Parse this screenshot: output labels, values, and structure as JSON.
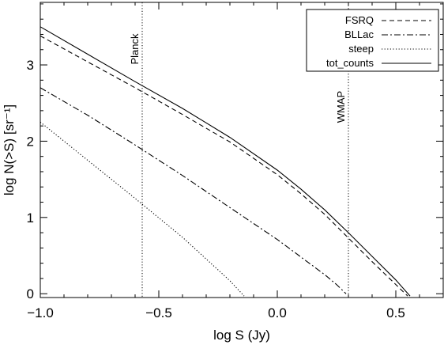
{
  "chart_data": {
    "type": "line",
    "xlabel": "log S (Jy)",
    "ylabel": "log N(>S) [sr⁻¹]",
    "xlim": [
      -1.0,
      0.7
    ],
    "ylim": [
      -0.05,
      3.82
    ],
    "xticks": [
      -1.0,
      -0.5,
      0.0,
      0.5
    ],
    "xtick_labels": [
      "−1.0",
      "−0.5",
      "0.0",
      "0.5"
    ],
    "yticks": [
      0,
      1,
      2,
      3
    ],
    "ytick_labels": [
      "0",
      "1",
      "2",
      "3"
    ],
    "grid": false,
    "legend_position": "top-right",
    "series": [
      {
        "name": "FSRQ",
        "style": "dashed",
        "x": [
          -1.0,
          -0.8,
          -0.6,
          -0.4,
          -0.2,
          0.0,
          0.1,
          0.2,
          0.3,
          0.4,
          0.5,
          0.55
        ],
        "y": [
          3.38,
          3.04,
          2.7,
          2.35,
          1.99,
          1.56,
          1.31,
          1.04,
          0.73,
          0.42,
          0.12,
          -0.03
        ]
      },
      {
        "name": "BLLac",
        "style": "dashdot",
        "x": [
          -1.0,
          -0.8,
          -0.6,
          -0.4,
          -0.2,
          0.0,
          0.2,
          0.25,
          0.29
        ],
        "y": [
          2.7,
          2.34,
          1.95,
          1.55,
          1.13,
          0.71,
          0.25,
          0.12,
          0.0
        ]
      },
      {
        "name": "steep",
        "style": "dotted",
        "x": [
          -1.0,
          -0.8,
          -0.6,
          -0.4,
          -0.2,
          -0.14
        ],
        "y": [
          2.25,
          1.75,
          1.25,
          0.74,
          0.17,
          -0.03
        ]
      },
      {
        "name": "tot_counts",
        "style": "solid",
        "x": [
          -1.0,
          -0.8,
          -0.6,
          -0.4,
          -0.2,
          0.0,
          0.1,
          0.2,
          0.3,
          0.4,
          0.5,
          0.56
        ],
        "y": [
          3.5,
          3.14,
          2.78,
          2.43,
          2.05,
          1.62,
          1.37,
          1.1,
          0.8,
          0.49,
          0.18,
          -0.03
        ]
      }
    ],
    "vlines": [
      {
        "label": "Planck",
        "x": -0.57,
        "label_side": "top"
      },
      {
        "label": "WMAP",
        "x": 0.3,
        "label_side": "middle"
      }
    ]
  },
  "colors": {
    "axes": "#000000",
    "lines": "#000000",
    "background": "#ffffff"
  }
}
